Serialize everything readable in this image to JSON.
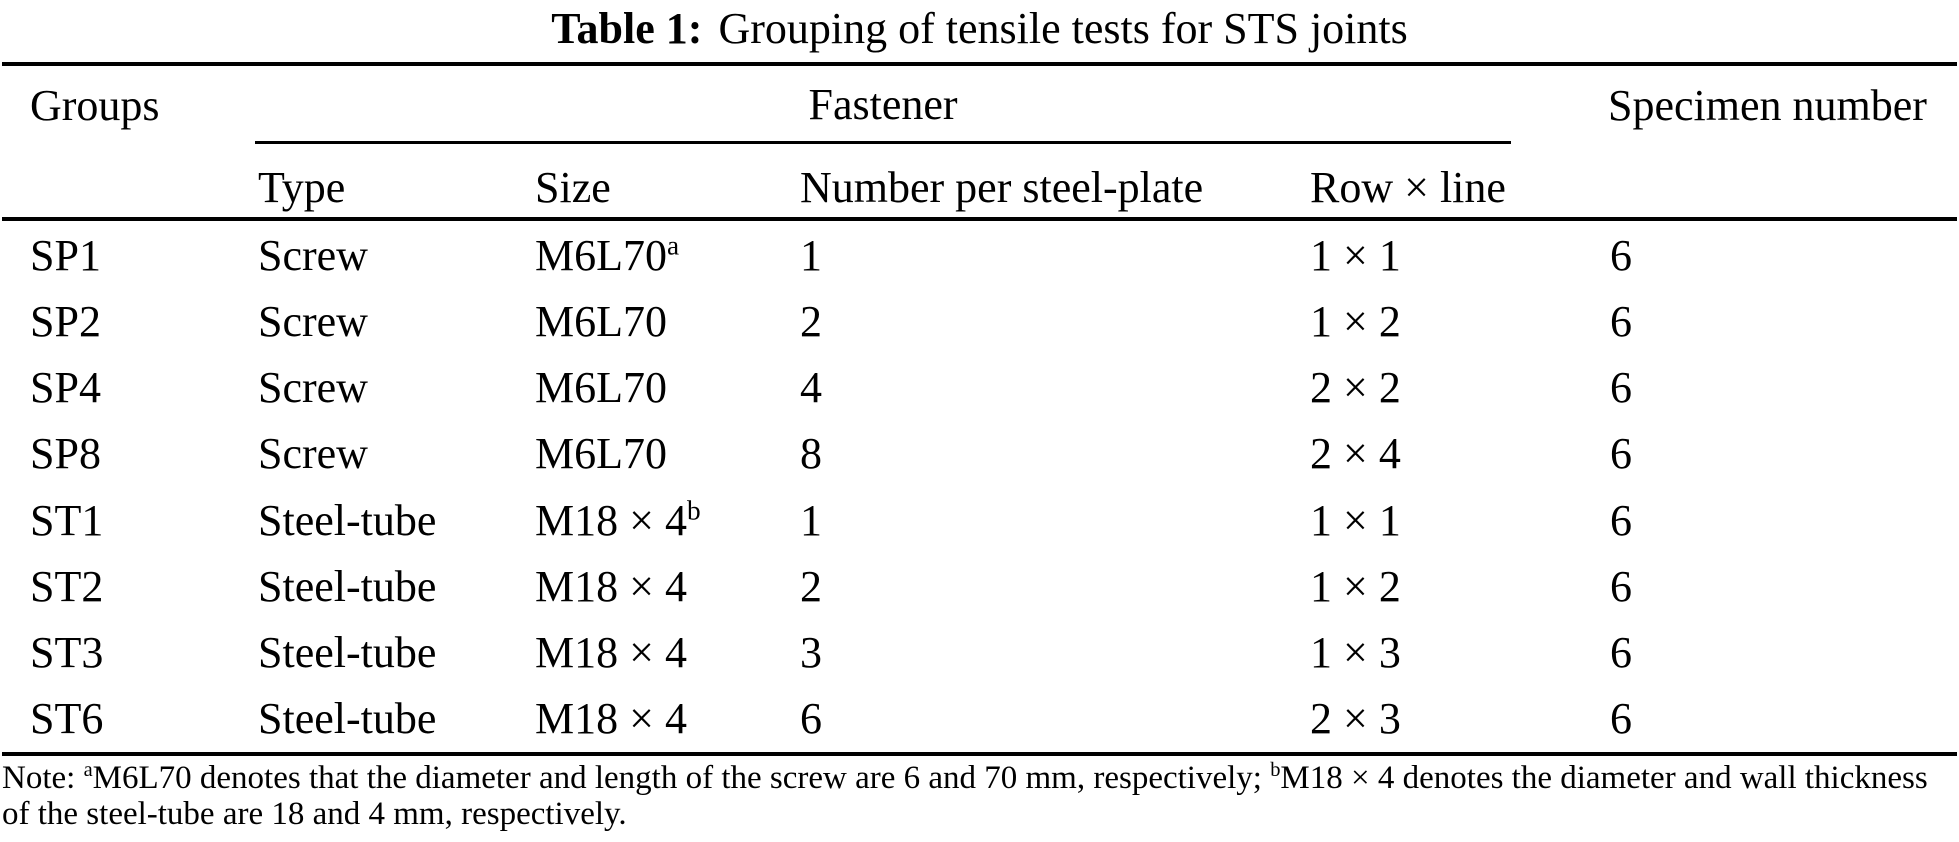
{
  "caption": {
    "label": "Table 1:",
    "text": "Grouping of tensile tests for STS joints"
  },
  "header": {
    "groups": "Groups",
    "fastener": "Fastener",
    "specimen_number": "Specimen number",
    "sub_type": "Type",
    "sub_size": "Size",
    "sub_number": "Number per steel-plate",
    "sub_row_line": "Row × line"
  },
  "table": {
    "rows": [
      {
        "group": "SP1",
        "type": "Screw",
        "size": "M6L70",
        "size_sup": "a",
        "number": "1",
        "row_line": "1 × 1",
        "specimens": "6"
      },
      {
        "group": "SP2",
        "type": "Screw",
        "size": "M6L70",
        "size_sup": "",
        "number": "2",
        "row_line": "1 × 2",
        "specimens": "6"
      },
      {
        "group": "SP4",
        "type": "Screw",
        "size": "M6L70",
        "size_sup": "",
        "number": "4",
        "row_line": "2 × 2",
        "specimens": "6"
      },
      {
        "group": "SP8",
        "type": "Screw",
        "size": "M6L70",
        "size_sup": "",
        "number": "8",
        "row_line": "2 × 4",
        "specimens": "6"
      },
      {
        "group": "ST1",
        "type": "Steel-tube",
        "size": "M18 × 4",
        "size_sup": "b",
        "number": "1",
        "row_line": "1 × 1",
        "specimens": "6"
      },
      {
        "group": "ST2",
        "type": "Steel-tube",
        "size": "M18 × 4",
        "size_sup": "",
        "number": "2",
        "row_line": "1 × 2",
        "specimens": "6"
      },
      {
        "group": "ST3",
        "type": "Steel-tube",
        "size": "M18 × 4",
        "size_sup": "",
        "number": "3",
        "row_line": "1 × 3",
        "specimens": "6"
      },
      {
        "group": "ST6",
        "type": "Steel-tube",
        "size": "M18 × 4",
        "size_sup": "",
        "number": "6",
        "row_line": "2 × 3",
        "specimens": "6"
      }
    ]
  },
  "note": {
    "prefix": "Note: ",
    "sup_a": "a",
    "text_a": "M6L70 denotes that the diameter and length of the screw are 6 and 70 mm, respectively; ",
    "sup_b": "b",
    "text_b": "M18 × 4 denotes the diameter and wall thickness of the steel-tube are 18 and 4 mm, respectively."
  },
  "colors": {
    "text": "#000000",
    "rule": "#000000",
    "background": "#ffffff"
  }
}
